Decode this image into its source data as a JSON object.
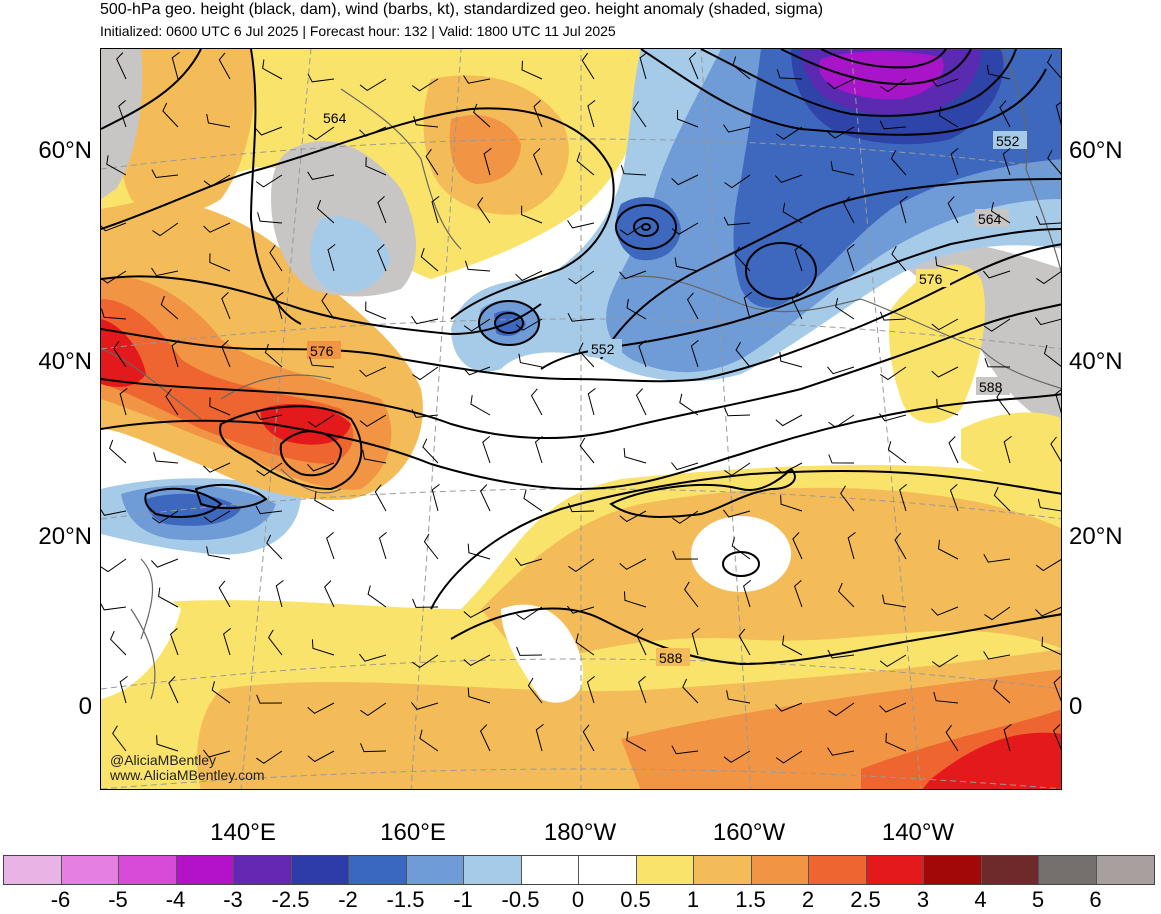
{
  "header": {
    "title": "500-hPa geo. height (black, dam), wind (barbs, kt), standardized geo. height anomaly (shaded, sigma)",
    "subtitle": "Initialized: 0600 UTC 6 Jul 2025 | Forecast hour: 132 | Valid: 1800 UTC 11 Jul 2025"
  },
  "map": {
    "lat_labels": [
      "60°N",
      "40°N",
      "20°N",
      "0"
    ],
    "lon_labels": [
      "140°E",
      "160°E",
      "180°W",
      "160°W",
      "140°W"
    ],
    "contour_labels": [
      "564",
      "576",
      "552",
      "552",
      "564",
      "576",
      "588",
      "588"
    ],
    "credit": [
      "@AliciaMBentley",
      "www.AliciaMBentley.com"
    ],
    "colors": {
      "anom_neg_05": "#a6cbe8",
      "anom_neg_1": "#6f9bd6",
      "anom_neg_15": "#3d68be",
      "anom_neg_2": "#2f44a8",
      "anom_neg_25": "#5a2ab0",
      "anom_neg_3": "#a814c8",
      "anom_pos_05": "#fae36a",
      "anom_pos_1": "#f3bc58",
      "anom_pos_15": "#f19444",
      "anom_pos_2": "#ef6530",
      "anom_pos_25": "#e4191b",
      "anom_pos_3": "#b00c0c",
      "gray_high": "#c8c5c5"
    }
  },
  "colorbar": {
    "colors": [
      "#e8b4e6",
      "#e57fe0",
      "#d84ad8",
      "#b412c8",
      "#6428b2",
      "#2d3ca8",
      "#3a68c1",
      "#6f9bd6",
      "#a6cbe8",
      "#ffffff",
      "#ffffff",
      "#fae36a",
      "#f3bc58",
      "#f19444",
      "#ef6530",
      "#e4191b",
      "#a30808",
      "#6e2a2a",
      "#75706e",
      "#a89f9f"
    ],
    "ticks": [
      "-6",
      "-5",
      "-4",
      "-3",
      "-2.5",
      "-2",
      "-1.5",
      "-1",
      "-0.5",
      "0",
      "0.5",
      "1",
      "1.5",
      "2",
      "2.5",
      "3",
      "4",
      "5",
      "6"
    ]
  }
}
